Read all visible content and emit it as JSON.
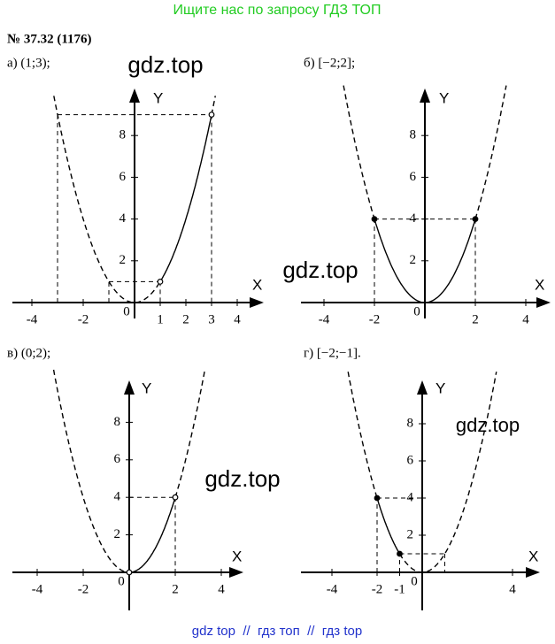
{
  "header": {
    "banner": "Ищите нас по запросу ГДЗ ТОП",
    "problem": "№ 37.32 (1176)"
  },
  "panels": [
    {
      "label": "а) (1;3);",
      "watermark": "gdz.top",
      "x_axis_label": "X",
      "y_axis_label": "Y",
      "xticks": [
        -4,
        -2,
        0,
        1,
        2,
        3,
        4
      ],
      "yticks": [
        2,
        4,
        6,
        8
      ]
    },
    {
      "label": "б) [−2;2];",
      "watermark": "gdz.top",
      "x_axis_label": "X",
      "y_axis_label": "Y",
      "xticks": [
        -4,
        -2,
        0,
        2,
        4
      ],
      "yticks": [
        2,
        4,
        6,
        8
      ]
    },
    {
      "label": "в) (0;2);",
      "watermark": "gdz.top",
      "x_axis_label": "X",
      "y_axis_label": "Y",
      "xticks": [
        -4,
        -2,
        0,
        2,
        4
      ],
      "yticks": [
        2,
        4,
        6,
        8
      ]
    },
    {
      "label": "г) [−2;−1].",
      "watermark": "gdz.top",
      "x_axis_label": "X",
      "y_axis_label": "Y",
      "xticks": [
        -4,
        -2,
        -1,
        0,
        4
      ],
      "yticks": [
        2,
        4,
        6,
        8
      ]
    }
  ],
  "footer": "gdz top  //  гдз топ  //  гдз top"
}
